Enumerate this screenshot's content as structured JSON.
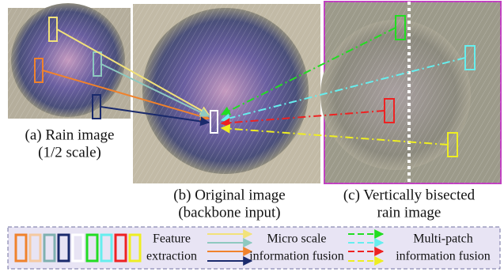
{
  "panels": [
    {
      "caption": [
        "(a) Rain image",
        "(1/2 scale)"
      ]
    },
    {
      "caption": [
        "(b) Original image",
        "(backbone input)"
      ]
    },
    {
      "caption": [
        "(c) Vertically bisected",
        "rain image"
      ]
    }
  ],
  "legend": {
    "feature": [
      "Feature",
      "extraction"
    ],
    "micro_scale": [
      "Micro scale",
      "information fusion"
    ],
    "multi_patch": [
      "Multi-patch",
      "information fusion"
    ]
  }
}
